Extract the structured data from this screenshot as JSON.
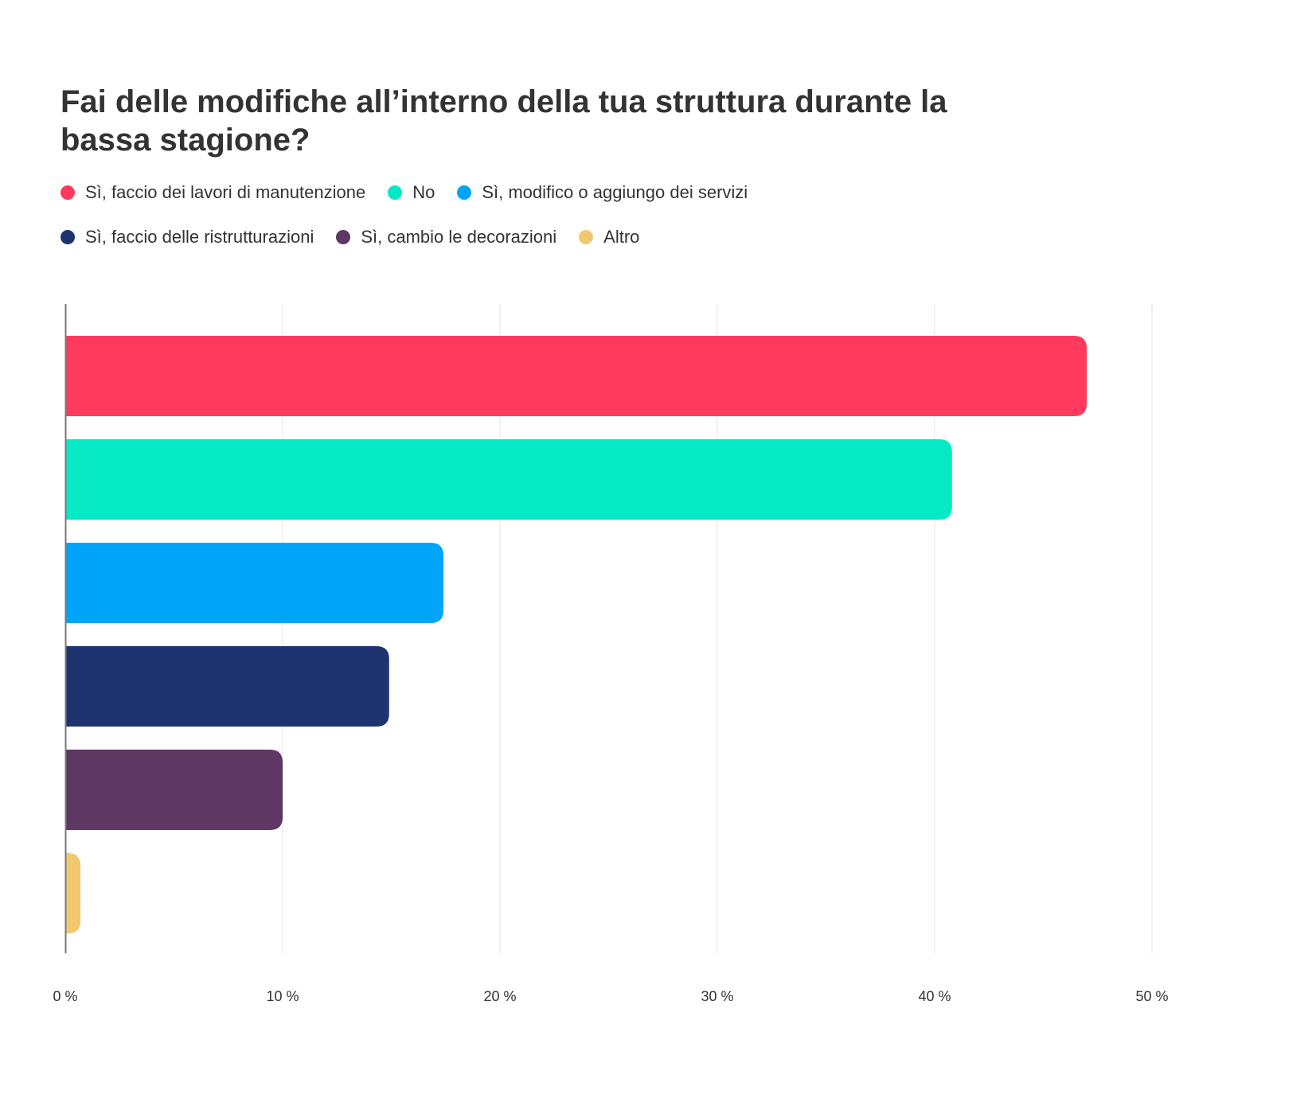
{
  "chart_data": {
    "type": "bar",
    "orientation": "horizontal",
    "title": "Fai delle modifiche all’interno della tua struttura durante la bassa stagione?",
    "xlabel": "",
    "ylabel": "",
    "xlim": [
      0,
      50
    ],
    "grid": true,
    "legend_position": "top-left",
    "ticks": [
      {
        "value": 0,
        "label": "0 %"
      },
      {
        "value": 10,
        "label": "10 %"
      },
      {
        "value": 20,
        "label": "20 %"
      },
      {
        "value": 30,
        "label": "30 %"
      },
      {
        "value": 40,
        "label": "40 %"
      },
      {
        "value": 50,
        "label": "50 %"
      }
    ],
    "categories": [
      "Sì, faccio dei lavori di manutenzione",
      "No",
      "Sì, modifico o aggiungo dei servizi",
      "Sì, faccio delle ristrutturazioni",
      "Sì, cambio le decorazioni",
      "Altro"
    ],
    "values": [
      47,
      40.8,
      17.4,
      14.9,
      10,
      0.7
    ],
    "colors": [
      "#FF3A5C",
      "#05EAC5",
      "#00A5FA",
      "#1E3470",
      "#5E3763",
      "#F0C872"
    ]
  }
}
